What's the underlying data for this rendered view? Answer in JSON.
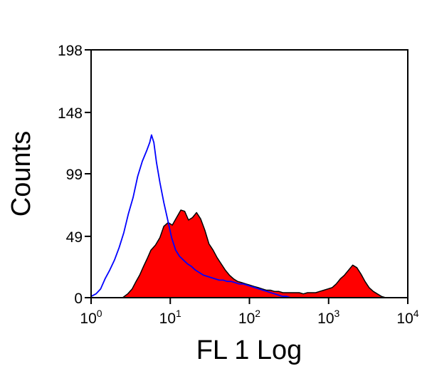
{
  "chart_data": {
    "type": "area",
    "xlabel": "FL 1 Log",
    "ylabel": "Counts",
    "xscale": "log",
    "xlim": [
      1,
      10000
    ],
    "ylim": [
      0,
      198
    ],
    "grid": false,
    "y_ticks": [
      {
        "value": 0,
        "label": "0"
      },
      {
        "value": 49,
        "label": "49"
      },
      {
        "value": 99,
        "label": "99"
      },
      {
        "value": 148,
        "label": "148"
      },
      {
        "value": 198,
        "label": "198"
      }
    ],
    "x_ticks": [
      {
        "value": 1,
        "base": "10",
        "exp": "0"
      },
      {
        "value": 10,
        "base": "10",
        "exp": "1"
      },
      {
        "value": 100,
        "base": "10",
        "exp": "2"
      },
      {
        "value": 1000,
        "base": "10",
        "exp": "3"
      },
      {
        "value": 10000,
        "base": "10",
        "exp": "4"
      }
    ],
    "series": [
      {
        "style": "filled",
        "color": "#ff0000",
        "outline": "#000000",
        "x": [
          2.5,
          2.9,
          3.3,
          3.7,
          4.1,
          4.6,
          5.1,
          5.7,
          6.5,
          7.4,
          8.3,
          9.4,
          10.6,
          12,
          13.6,
          15.2,
          17,
          19.1,
          21.5,
          24.2,
          27.3,
          30.8,
          34.7,
          39.1,
          44,
          49.6,
          55.9,
          63,
          71,
          80,
          90,
          101,
          114,
          129,
          145,
          163,
          184,
          207,
          234,
          264,
          297,
          335,
          378,
          426,
          480,
          541,
          610,
          687,
          774,
          872,
          983,
          1108,
          1249,
          1407,
          1586,
          1787,
          2014,
          2270,
          2558,
          2883,
          3249,
          3661,
          4126,
          4650,
          5240
        ],
        "y": [
          0,
          3,
          7,
          13,
          18,
          25,
          31,
          38,
          42,
          48,
          57,
          60,
          58,
          64,
          70,
          69,
          62,
          64,
          68,
          63,
          54,
          43,
          38,
          32,
          27,
          22,
          18,
          15,
          13,
          12,
          11,
          10,
          9,
          8,
          7,
          6,
          6,
          5,
          5,
          4,
          4,
          4,
          4,
          4,
          3,
          4,
          4,
          4,
          5,
          6,
          7,
          8,
          11,
          15,
          18,
          22,
          26,
          24,
          19,
          13,
          8,
          5,
          3,
          1,
          0
        ]
      },
      {
        "style": "line",
        "color": "#0000ff",
        "x": [
          1,
          1.15,
          1.32,
          1.5,
          1.72,
          1.97,
          2.26,
          2.59,
          2.96,
          3.39,
          3.88,
          4.44,
          5.08,
          5.5,
          5.8,
          6.2,
          6.7,
          7.4,
          8.3,
          9.3,
          10.4,
          11.7,
          13.1,
          14.7,
          16.5,
          18.5,
          20.8,
          23.3,
          26.2,
          29.4,
          33,
          37,
          41.5,
          46.6,
          52.3,
          58.7,
          65.9,
          73.9,
          83,
          93.1,
          104.5,
          117,
          131.5,
          147.5,
          165.6,
          185.8,
          208.6,
          234,
          262.6,
          294.8,
          330.8
        ],
        "y": [
          1,
          3,
          7,
          15,
          22,
          30,
          40,
          52,
          67,
          80,
          97,
          109,
          118,
          124,
          130,
          124,
          108,
          92,
          76,
          62,
          48,
          38,
          33,
          30,
          27,
          25,
          22,
          20,
          18,
          17,
          16,
          15,
          14,
          14,
          13,
          13,
          12,
          11,
          11,
          10,
          9,
          8,
          7,
          6,
          5,
          4,
          3,
          2,
          1,
          1,
          0
        ]
      }
    ]
  }
}
